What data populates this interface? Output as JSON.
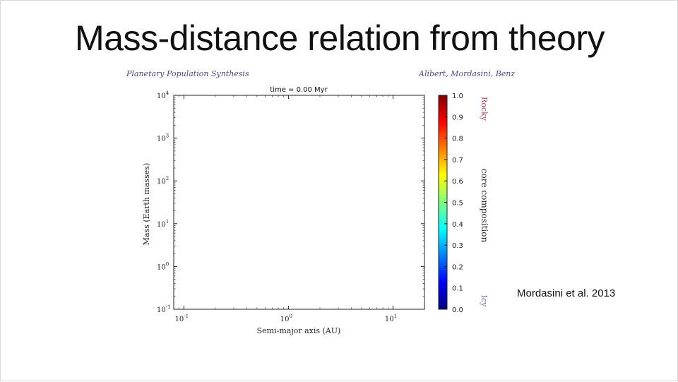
{
  "slide": {
    "title": "Mass-distance relation from theory",
    "credit_left": "Planetary Population Synthesis",
    "credit_right": "Alibert, Mordasini, Benz",
    "citation": "Mordasini et al. 2013"
  },
  "chart_data": {
    "type": "scatter",
    "title": "time = 0.00 Myr",
    "xlabel": "Semi-major axis (AU)",
    "ylabel": "Mass (Earth masses)",
    "xscale": "log",
    "yscale": "log",
    "xlim": [
      0.08,
      20
    ],
    "ylim": [
      0.1,
      10000
    ],
    "x_ticks": [
      {
        "value": 0.1,
        "base": "10",
        "exp": "-1"
      },
      {
        "value": 1,
        "base": "10",
        "exp": "0"
      },
      {
        "value": 10,
        "base": "10",
        "exp": "1"
      }
    ],
    "y_ticks": [
      {
        "value": 0.1,
        "base": "10",
        "exp": "-1"
      },
      {
        "value": 1,
        "base": "10",
        "exp": "0"
      },
      {
        "value": 10,
        "base": "10",
        "exp": "1"
      },
      {
        "value": 100,
        "base": "10",
        "exp": "2"
      },
      {
        "value": 1000,
        "base": "10",
        "exp": "3"
      },
      {
        "value": 10000,
        "base": "10",
        "exp": "4"
      }
    ],
    "points": [],
    "grid": false,
    "colorbar": {
      "label": "core composition",
      "range": [
        0,
        1
      ],
      "ticks": [
        "0.0",
        "0.1",
        "0.2",
        "0.3",
        "0.4",
        "0.5",
        "0.6",
        "0.7",
        "0.8",
        "0.9",
        "1.0"
      ],
      "top_label": "Rocky",
      "bottom_label": "Icy",
      "colormap": [
        "#00007f",
        "#0000ff",
        "#007fff",
        "#00ffff",
        "#7fff7f",
        "#ffff00",
        "#ff7f00",
        "#ff0000",
        "#7f0000"
      ],
      "top_label_color": "#b5485a",
      "bottom_label_color": "#6f6fa8"
    }
  }
}
